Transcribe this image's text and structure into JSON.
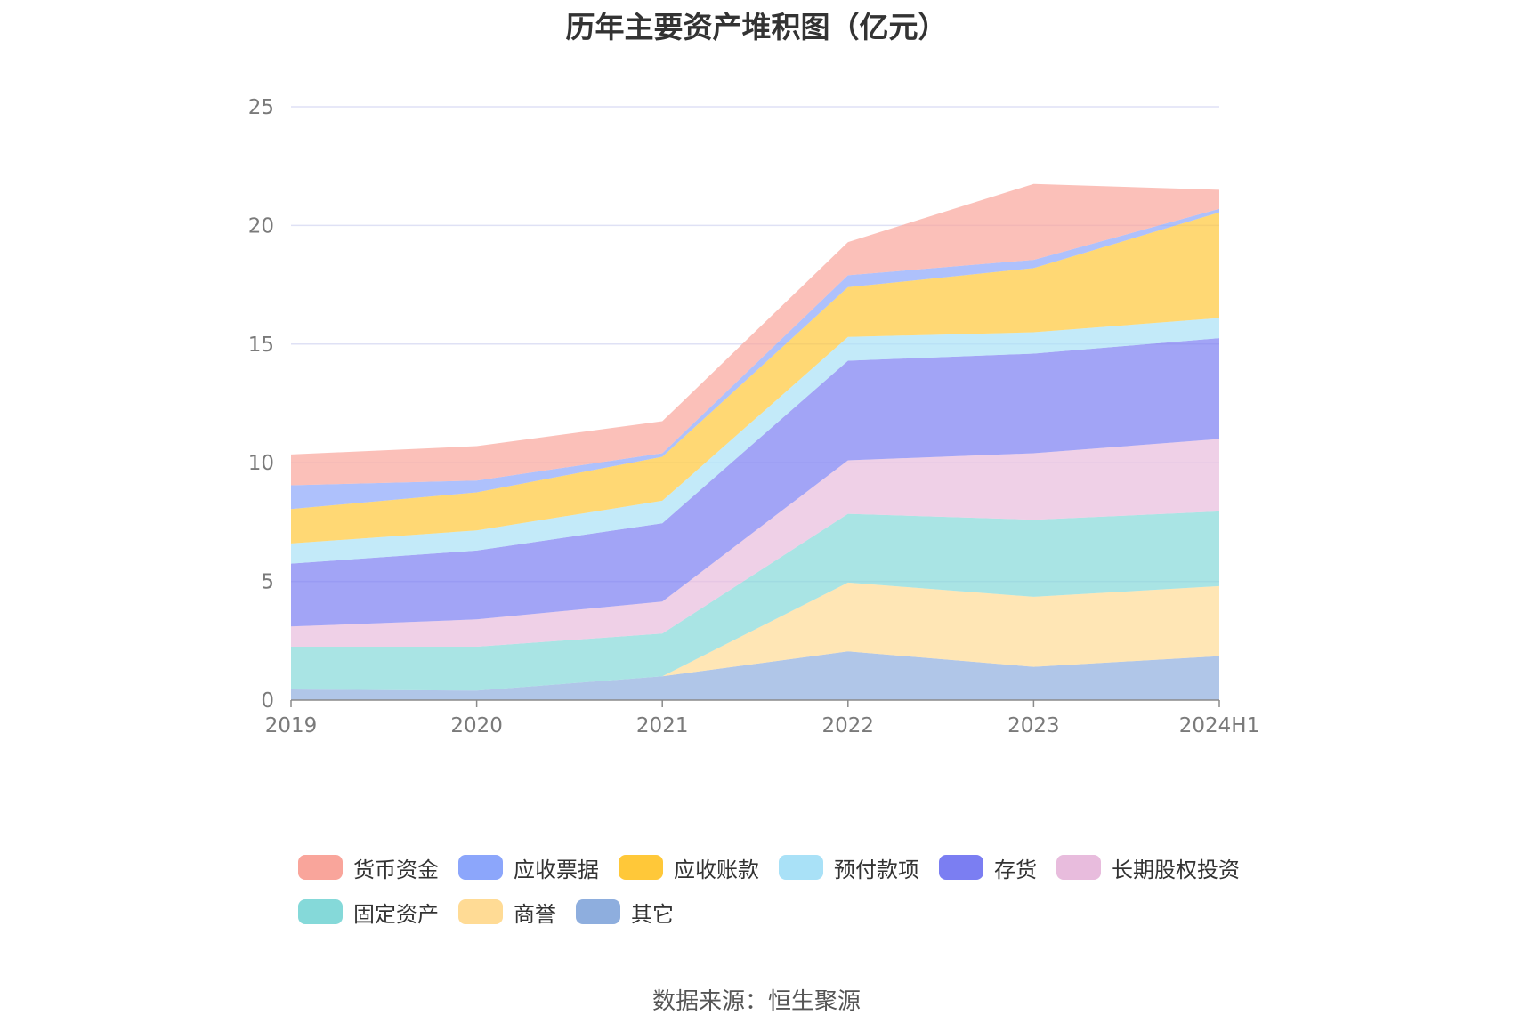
{
  "chart_data": {
    "type": "area",
    "stacked": true,
    "title": "历年主要资产堆积图（亿元）",
    "x": [
      "2019",
      "2020",
      "2021",
      "2022",
      "2023",
      "2024H1"
    ],
    "ylim": [
      0,
      25
    ],
    "yticks": [
      0,
      5,
      10,
      15,
      20,
      25
    ],
    "grid": true,
    "legend_position": "bottom",
    "series": [
      {
        "name": "其它",
        "color": "#8eaede",
        "values": [
          0.45,
          0.4,
          1.0,
          2.05,
          1.4,
          1.85
        ]
      },
      {
        "name": "商誉",
        "color": "#ffdb95",
        "values": [
          0.0,
          0.0,
          0.0,
          2.9,
          2.95,
          2.95
        ]
      },
      {
        "name": "固定资产",
        "color": "#85d9d9",
        "values": [
          1.8,
          1.85,
          1.8,
          2.9,
          3.25,
          3.15
        ]
      },
      {
        "name": "长期股权投资",
        "color": "#e8bcdd",
        "values": [
          0.85,
          1.15,
          1.35,
          2.25,
          2.8,
          3.05
        ]
      },
      {
        "name": "存货",
        "color": "#7b7ef2",
        "values": [
          2.65,
          2.9,
          3.3,
          4.2,
          4.2,
          4.25
        ]
      },
      {
        "name": "预付款项",
        "color": "#a9e1f7",
        "values": [
          0.85,
          0.85,
          0.95,
          1.0,
          0.9,
          0.85
        ]
      },
      {
        "name": "应收账款",
        "color": "#ffc839",
        "values": [
          1.45,
          1.6,
          1.85,
          2.1,
          2.7,
          4.45
        ]
      },
      {
        "name": "应收票据",
        "color": "#8ca6fb",
        "values": [
          1.0,
          0.5,
          0.15,
          0.5,
          0.35,
          0.15
        ]
      },
      {
        "name": "货币资金",
        "color": "#f9a59b",
        "values": [
          1.3,
          1.45,
          1.35,
          1.4,
          3.2,
          0.8
        ]
      }
    ],
    "legend_order": [
      "货币资金",
      "应收票据",
      "应收账款",
      "预付款项",
      "存货",
      "长期股权投资",
      "固定资产",
      "商誉",
      "其它"
    ]
  },
  "source": "数据来源：恒生聚源"
}
